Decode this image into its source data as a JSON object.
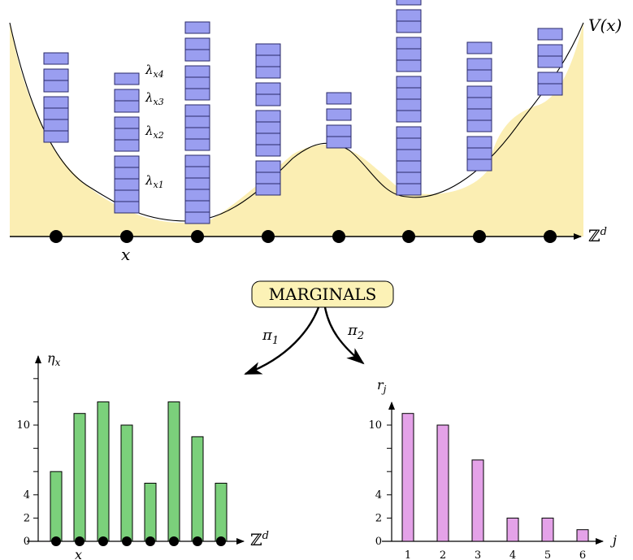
{
  "top_panel": {
    "potential_label": "V(x)",
    "axis_label": "ℤ^d",
    "x_label": "x",
    "lambda_labels": [
      "λ_x4",
      "λ_x3",
      "λ_x2",
      "λ_x1"
    ],
    "columns": [
      [
        4,
        2,
        1
      ],
      [
        5,
        3,
        2,
        1
      ],
      [
        6,
        4,
        3,
        2,
        1
      ],
      [
        3,
        4,
        2,
        3
      ],
      [
        2,
        1,
        1
      ],
      [
        6,
        4,
        3,
        2,
        1
      ],
      [
        3,
        4,
        2,
        1
      ],
      [
        2,
        2,
        1
      ]
    ],
    "colors": {
      "fill": "#fbeeb3",
      "block": "#9a9ef0",
      "point": "#000000"
    }
  },
  "center": {
    "title": "MARGINALS",
    "left_arrow_label": "π_1",
    "right_arrow_label": "π_2",
    "box_color": "#fcf2b6"
  },
  "chart_data": [
    {
      "type": "bar",
      "ylabel": "η_x",
      "xlabel": "ℤ^d",
      "x_label": "x",
      "yticks": [
        0,
        2,
        4,
        10
      ],
      "ylim": [
        0,
        14
      ],
      "values": [
        6,
        11,
        12,
        10,
        5,
        12,
        9,
        5
      ],
      "color": "#7bd07b"
    },
    {
      "type": "bar",
      "ylabel": "r_j",
      "xlabel": "j",
      "categories": [
        "1",
        "2",
        "3",
        "4",
        "5",
        "6"
      ],
      "yticks": [
        0,
        2,
        4,
        10
      ],
      "ylim": [
        0,
        12
      ],
      "values": [
        11,
        10,
        7,
        2,
        2,
        1
      ],
      "color": "#e4a2e8"
    }
  ]
}
